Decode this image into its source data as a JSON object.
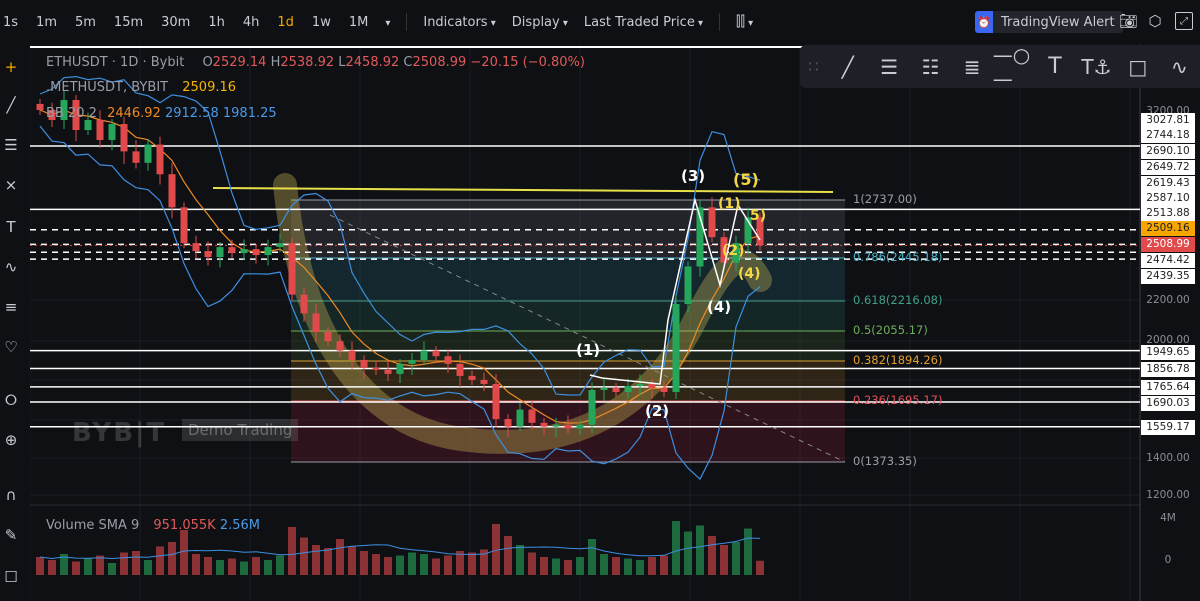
{
  "toolbar": {
    "timeframes": [
      "1s",
      "1m",
      "5m",
      "15m",
      "30m",
      "1h",
      "4h",
      "1d",
      "1w",
      "1M"
    ],
    "active_timeframe": "1d",
    "indicators_label": "Indicators",
    "display_label": "Display",
    "price_type_label": "Last Traded Price",
    "alert_label": "TradingView Alert",
    "icons": [
      "candlestick-icon",
      "camera-icon",
      "settings-icon",
      "fullscreen-icon"
    ]
  },
  "drawing_toolbar": [
    "drag-handle-icon",
    "trend-line-icon",
    "horizontal-lines-icon",
    "parallel-channel-icon",
    "fib-retracement-icon",
    "horizontal-ray-icon",
    "text-icon",
    "anchored-text-icon",
    "rectangle-icon",
    "elliott-wave-icon"
  ],
  "left_tools": [
    "crosshair-icon",
    "trend-line-icon",
    "horizontal-lines-icon",
    "pitchfork-icon",
    "text-icon",
    "elliott-wave-icon",
    "fib-icon",
    "heart-icon",
    "ruler-icon",
    "zoom-in-icon",
    "magnet-icon",
    "lock-drawings-icon",
    "lock-icon"
  ],
  "legend": {
    "symbol": "ETHUSDT · 1D · Bybit",
    "o_label": "O",
    "open": "2529.14",
    "h_label": "H",
    "high": "2538.92",
    "l_label": "L",
    "low": "2458.92",
    "c_label": "C",
    "close": "2508.99",
    "change": "−20.15 (−0.80%)",
    "mark_symbol": ".METHUSDT, BYBIT",
    "mark_value": "2509.16",
    "bb_label": "BB 20 2",
    "bb_basis": "2446.92",
    "bb_upper": "2912.58",
    "bb_lower": "1981.25",
    "volume_label": "Volume SMA 9",
    "volume_value": "951.055K",
    "volume_sma": "2.56M"
  },
  "price_axis": [
    {
      "text": "3200.00",
      "style": "plain"
    },
    {
      "text": "3027.81",
      "style": "box"
    },
    {
      "text": "2744.18",
      "style": "box"
    },
    {
      "text": "2690.10",
      "style": "box"
    },
    {
      "text": "2649.72",
      "style": "box"
    },
    {
      "text": "2619.43",
      "style": "box"
    },
    {
      "text": "2587.10",
      "style": "box"
    },
    {
      "text": "2513.88",
      "style": "box"
    },
    {
      "text": "2509.16",
      "style": "mark"
    },
    {
      "text": "2508.99",
      "style": "last"
    },
    {
      "text": "2474.42",
      "style": "box"
    },
    {
      "text": "2439.35",
      "style": "box"
    },
    {
      "text": "2200.00",
      "style": "plain"
    },
    {
      "text": "2000.00",
      "style": "plain"
    },
    {
      "text": "1949.65",
      "style": "box"
    },
    {
      "text": "1856.78",
      "style": "box"
    },
    {
      "text": "1765.64",
      "style": "box"
    },
    {
      "text": "1690.03",
      "style": "box"
    },
    {
      "text": "1559.17",
      "style": "box"
    },
    {
      "text": "1400.00",
      "style": "plain"
    },
    {
      "text": "1200.00",
      "style": "plain"
    },
    {
      "text": "4M",
      "style": "plain"
    },
    {
      "text": "0",
      "style": "plain"
    }
  ],
  "fib_levels": [
    {
      "ratio": "1",
      "price": 2737.0,
      "label": "1(2737.00)",
      "color": "#9a9ea8"
    },
    {
      "ratio": "0.786",
      "price": 2445.18,
      "label": "0.786(2445.18)",
      "color": "#4fb0c6"
    },
    {
      "ratio": "0.618",
      "price": 2216.08,
      "label": "0.618(2216.08)",
      "color": "#3fa08a"
    },
    {
      "ratio": "0.5",
      "price": 2055.17,
      "label": "0.5(2055.17)",
      "color": "#6fae5a"
    },
    {
      "ratio": "0.382",
      "price": 1894.26,
      "label": "0.382(1894.26)",
      "color": "#e0a030"
    },
    {
      "ratio": "0.236",
      "price": 1695.17,
      "label": "0.236(1695.17)",
      "color": "#e0505a"
    },
    {
      "ratio": "0",
      "price": 1373.35,
      "label": "0(1373.35)",
      "color": "#9a9ea8"
    }
  ],
  "colors": {
    "up": "#26a65b",
    "down": "#e04a4a",
    "bb": "#3d8fe0",
    "basis": "#f08a24",
    "accent": "#f7a600",
    "trendline": "#e8e04a"
  },
  "waves": [
    {
      "label": "(1)",
      "color": "#ffffff"
    },
    {
      "label": "(2)",
      "color": "#ffffff"
    },
    {
      "label": "(3)",
      "color": "#ffffff"
    },
    {
      "label": "(4)",
      "color": "#ffffff"
    },
    {
      "label": "(5)",
      "color": "#f5d742"
    },
    {
      "label": "(1)",
      "color": "#f5d742"
    },
    {
      "label": "(2)",
      "color": "#f5d742"
    },
    {
      "label": "(4)",
      "color": "#f5d742"
    },
    {
      "label": "5)",
      "color": "#f5d742"
    }
  ],
  "watermark": {
    "brand": "BYBIT",
    "mode": "Demo Trading"
  },
  "chart_data": {
    "type": "candlestick",
    "symbol": "ETHUSDT",
    "interval": "1D",
    "closes": [
      3150,
      3100,
      3200,
      3050,
      3100,
      3000,
      3080,
      2950,
      2900,
      2980,
      2850,
      2700,
      2520,
      2480,
      2450,
      2500,
      2470,
      2490,
      2460,
      2500,
      2520,
      2250,
      2150,
      2050,
      2000,
      1950,
      1900,
      1860,
      1850,
      1830,
      1880,
      1900,
      1950,
      1920,
      1880,
      1820,
      1800,
      1780,
      1600,
      1560,
      1650,
      1580,
      1560,
      1570,
      1550,
      1570,
      1750,
      1760,
      1740,
      1770,
      1780,
      1760,
      1740,
      2200,
      2400,
      2700,
      2550,
      2420,
      2520,
      2650,
      2509
    ],
    "volumes_m": [
      1.2,
      1.0,
      1.4,
      0.9,
      1.1,
      1.3,
      0.8,
      1.5,
      1.6,
      1.0,
      1.9,
      2.2,
      3.0,
      1.4,
      1.2,
      1.0,
      1.1,
      0.9,
      1.2,
      1.0,
      1.3,
      3.2,
      2.5,
      2.0,
      1.8,
      2.4,
      1.9,
      1.6,
      1.4,
      1.2,
      1.3,
      1.5,
      1.4,
      1.1,
      1.3,
      1.6,
      1.5,
      1.7,
      3.4,
      2.6,
      2.0,
      1.5,
      1.2,
      1.1,
      1.0,
      1.2,
      2.4,
      1.4,
      1.2,
      1.1,
      1.0,
      1.2,
      1.3,
      3.6,
      2.9,
      3.3,
      2.6,
      2.0,
      2.2,
      3.1,
      0.95
    ],
    "horizontal_lines": [
      2690.1,
      2587.1,
      2513.88,
      2474.42,
      2439.35,
      1949.65,
      1856.78,
      1765.64,
      1690.03,
      1559.17
    ],
    "ylim": [
      1200,
      3300
    ],
    "volume_ylim": [
      0,
      4
    ]
  }
}
